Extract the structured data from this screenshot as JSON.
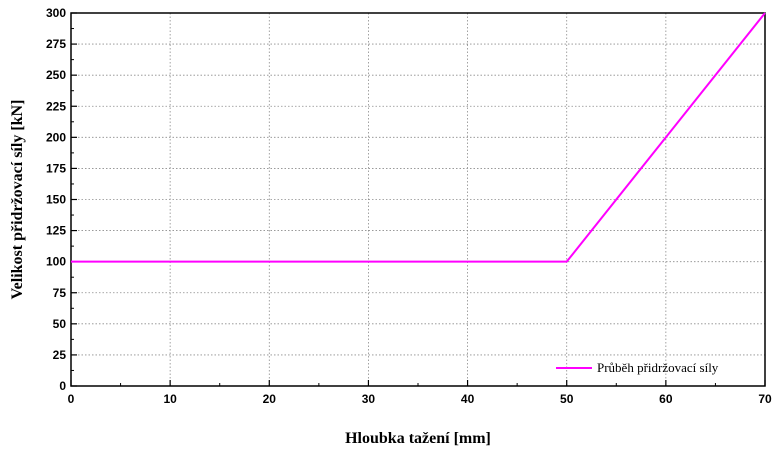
{
  "chart_data": {
    "type": "line",
    "xlabel": "Hloubka tažení [mm]",
    "ylabel": "Velikost přidržovací síly [kN]",
    "xlim": [
      0,
      70
    ],
    "ylim": [
      0,
      300
    ],
    "x_ticks": [
      0,
      10,
      20,
      30,
      40,
      50,
      60,
      70
    ],
    "y_ticks": [
      0,
      25,
      50,
      75,
      100,
      125,
      150,
      175,
      200,
      225,
      250,
      275,
      300
    ],
    "grid": true,
    "legend_position": "bottom-right",
    "series": [
      {
        "name": "Průběh přidržovací síly",
        "color": "#ff00ff",
        "x": [
          0,
          50,
          70
        ],
        "y": [
          100,
          100,
          300
        ]
      }
    ]
  }
}
